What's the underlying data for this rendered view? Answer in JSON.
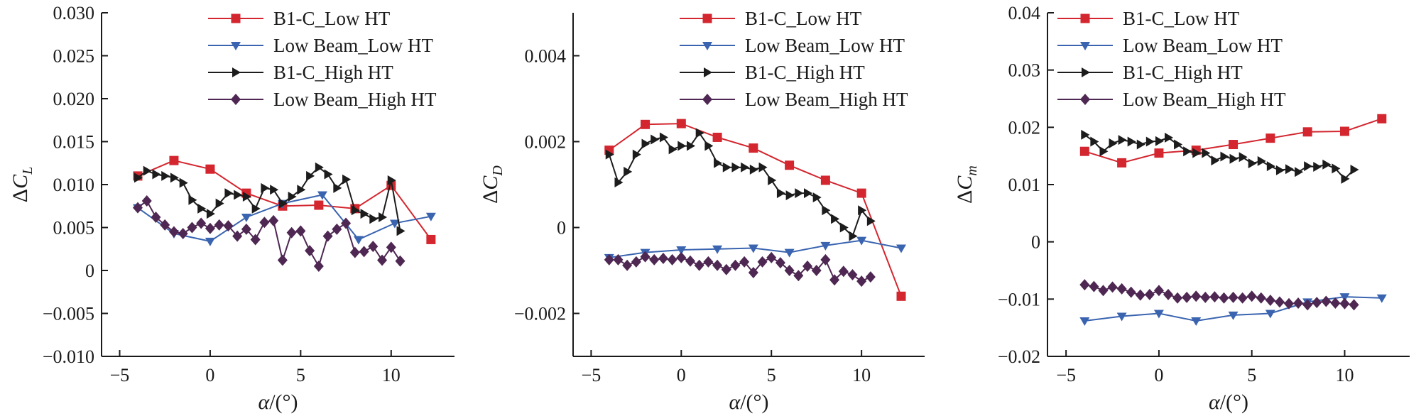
{
  "colors": {
    "s1": "#d3262f",
    "s2": "#3a64b0",
    "s3": "#1c1c1c",
    "s4": "#4e2752"
  },
  "legend_labels": [
    "B1-C_Low HT",
    "Low Beam_Low HT",
    "B1-C_High HT",
    "Low Beam_High HT"
  ],
  "chart_data": [
    {
      "type": "line",
      "xlabel": "α/(°)",
      "ylabel": "ΔC_L",
      "ylabel_main": "ΔC",
      "ylabel_sub": "L",
      "xlim": [
        -6,
        13.5
      ],
      "ylim": [
        -0.01,
        0.03
      ],
      "xticks": [
        -5,
        0,
        5,
        10
      ],
      "xtick_labels": [
        "−5",
        "0",
        "5",
        "10"
      ],
      "yticks": [
        -0.01,
        -0.005,
        0,
        0.005,
        0.01,
        0.015,
        0.02,
        0.025,
        0.03
      ],
      "ytick_labels": [
        "−0.010",
        "−0.005",
        "0",
        "0.005",
        "0.010",
        "0.015",
        "0.020",
        "0.025",
        "0.030"
      ],
      "legend_position": "top-right",
      "series": [
        {
          "name": "B1-C_Low HT",
          "marker": "square",
          "x": [
            -4,
            -2,
            0,
            2,
            4,
            6,
            8,
            10,
            12.2
          ],
          "y": [
            0.011,
            0.0128,
            0.0118,
            0.009,
            0.0075,
            0.0076,
            0.0072,
            0.0099,
            0.0036
          ]
        },
        {
          "name": "Low Beam_Low HT",
          "marker": "triangle-down",
          "x": [
            -4,
            -2,
            0,
            2,
            4,
            6.2,
            8.2,
            10.2,
            12.2
          ],
          "y": [
            0.0073,
            0.0043,
            0.0034,
            0.0062,
            0.0078,
            0.0088,
            0.0036,
            0.0055,
            0.0063
          ]
        },
        {
          "name": "B1-C_High HT",
          "marker": "triangle-right",
          "x": [
            -4,
            -3.5,
            -3,
            -2.5,
            -2,
            -1.5,
            -1,
            -0.5,
            0,
            0.5,
            1,
            1.5,
            2,
            2.5,
            3,
            3.5,
            4,
            4.5,
            5,
            5.5,
            6,
            6.5,
            7,
            7.5,
            8,
            8.5,
            9,
            9.5,
            10,
            10.5
          ],
          "y": [
            0.0108,
            0.0116,
            0.0112,
            0.011,
            0.0108,
            0.0102,
            0.0082,
            0.0072,
            0.0066,
            0.0078,
            0.009,
            0.0088,
            0.0086,
            0.0072,
            0.0096,
            0.0094,
            0.0078,
            0.0086,
            0.0094,
            0.011,
            0.012,
            0.0112,
            0.0096,
            0.0106,
            0.007,
            0.0066,
            0.006,
            0.0062,
            0.0105,
            0.0046
          ]
        },
        {
          "name": "Low Beam_High HT",
          "marker": "diamond",
          "x": [
            -4,
            -3.5,
            -3,
            -2.5,
            -2,
            -1.5,
            -1,
            -0.5,
            0,
            0.5,
            1,
            1.5,
            2,
            2.5,
            3,
            3.5,
            4,
            4.5,
            5,
            5.5,
            6,
            6.5,
            7,
            7.5,
            8,
            8.5,
            9,
            9.5,
            10,
            10.5
          ],
          "y": [
            0.0073,
            0.0081,
            0.0062,
            0.0053,
            0.0045,
            0.0043,
            0.005,
            0.0055,
            0.0049,
            0.0053,
            0.0052,
            0.004,
            0.0048,
            0.0036,
            0.0056,
            0.0058,
            0.0012,
            0.0044,
            0.0046,
            0.0023,
            0.0005,
            0.004,
            0.0048,
            0.0055,
            0.0021,
            0.0022,
            0.0028,
            0.0012,
            0.0027,
            0.0011
          ]
        }
      ]
    },
    {
      "type": "line",
      "xlabel": "α/(°)",
      "ylabel": "ΔC_D",
      "ylabel_main": "ΔC",
      "ylabel_sub": "D",
      "xlim": [
        -6,
        13.5
      ],
      "ylim": [
        -0.003,
        0.005
      ],
      "xticks": [
        -5,
        0,
        5,
        10
      ],
      "xtick_labels": [
        "−5",
        "0",
        "5",
        "10"
      ],
      "yticks": [
        -0.002,
        0,
        0.002,
        0.004
      ],
      "ytick_labels": [
        "−0.002",
        "0",
        "0.002",
        "0.004"
      ],
      "legend_position": "top-right",
      "series": [
        {
          "name": "B1-C_Low HT",
          "marker": "square",
          "x": [
            -4,
            -2,
            0,
            2,
            4,
            6,
            8,
            10,
            12.2
          ],
          "y": [
            0.0018,
            0.0024,
            0.00242,
            0.0021,
            0.00185,
            0.00145,
            0.0011,
            0.0008,
            -0.0016
          ]
        },
        {
          "name": "Low Beam_Low HT",
          "marker": "triangle-down",
          "x": [
            -4,
            -2,
            0,
            2,
            4,
            6,
            8,
            10,
            12.2
          ],
          "y": [
            -0.0007,
            -0.00058,
            -0.00052,
            -0.0005,
            -0.00048,
            -0.00058,
            -0.00042,
            -0.0003,
            -0.00048
          ]
        },
        {
          "name": "B1-C_High HT",
          "marker": "triangle-right",
          "x": [
            -4,
            -3.5,
            -3,
            -2.5,
            -2,
            -1.5,
            -1,
            -0.5,
            0,
            0.5,
            1,
            1.5,
            2,
            2.5,
            3,
            3.5,
            4,
            4.5,
            5,
            5.5,
            6,
            6.5,
            7,
            7.5,
            8,
            8.5,
            9,
            9.5,
            10,
            10.5
          ],
          "y": [
            0.0017,
            0.00105,
            0.0013,
            0.0017,
            0.00195,
            0.00205,
            0.0021,
            0.00182,
            0.0019,
            0.0019,
            0.0022,
            0.0019,
            0.0015,
            0.0014,
            0.0014,
            0.0014,
            0.00135,
            0.0014,
            0.0011,
            0.0008,
            0.00075,
            0.0008,
            0.0008,
            0.0007,
            0.0004,
            0.0002,
            0.0,
            -0.0002,
            0.0004,
            0.00015
          ]
        },
        {
          "name": "Low Beam_High HT",
          "marker": "diamond",
          "x": [
            -4,
            -3.5,
            -3,
            -2.5,
            -2,
            -1.5,
            -1,
            -0.5,
            0,
            0.5,
            1,
            1.5,
            2,
            2.5,
            3,
            3.5,
            4,
            4.5,
            5,
            5.5,
            6,
            6.5,
            7,
            7.5,
            8,
            8.5,
            9,
            9.5,
            10,
            10.5
          ],
          "y": [
            -0.00075,
            -0.00075,
            -0.00088,
            -0.0008,
            -0.00068,
            -0.00075,
            -0.00072,
            -0.00075,
            -0.0007,
            -0.00078,
            -0.00088,
            -0.0008,
            -0.00088,
            -0.00098,
            -0.00088,
            -0.0008,
            -0.00105,
            -0.0008,
            -0.0007,
            -0.00082,
            -0.001,
            -0.00112,
            -0.0009,
            -0.001,
            -0.00075,
            -0.00122,
            -0.00102,
            -0.0011,
            -0.00125,
            -0.00115
          ]
        }
      ]
    },
    {
      "type": "line",
      "xlabel": "α/(°)",
      "ylabel": "ΔC_m",
      "ylabel_main": "ΔC",
      "ylabel_sub": "m",
      "xlim": [
        -6,
        13.5
      ],
      "ylim": [
        -0.02,
        0.04
      ],
      "xticks": [
        -5,
        0,
        5,
        10
      ],
      "xtick_labels": [
        "−5",
        "0",
        "5",
        "10"
      ],
      "yticks": [
        -0.02,
        -0.01,
        0,
        0.01,
        0.02,
        0.03,
        0.04
      ],
      "ytick_labels": [
        "−0.02",
        "−0.01",
        "0",
        "0.01",
        "0.02",
        "0.03",
        "0.04"
      ],
      "legend_position": "top-right",
      "series": [
        {
          "name": "B1-C_Low HT",
          "marker": "square",
          "x": [
            -4,
            -2,
            0,
            2,
            4,
            6,
            8,
            10,
            12
          ],
          "y": [
            0.0158,
            0.0138,
            0.0155,
            0.016,
            0.017,
            0.0181,
            0.0192,
            0.0193,
            0.0215
          ]
        },
        {
          "name": "Low Beam_Low HT",
          "marker": "triangle-down",
          "x": [
            -4,
            -2,
            0,
            2,
            4,
            6,
            8,
            10,
            12
          ],
          "y": [
            -0.0138,
            -0.013,
            -0.0125,
            -0.0138,
            -0.0128,
            -0.0125,
            -0.0105,
            -0.0096,
            -0.0098
          ]
        },
        {
          "name": "B1-C_High HT",
          "marker": "triangle-right",
          "x": [
            -4,
            -3.5,
            -3,
            -2.5,
            -2,
            -1.5,
            -1,
            -0.5,
            0,
            0.5,
            1,
            1.5,
            2,
            2.5,
            3,
            3.5,
            4,
            4.5,
            5,
            5.5,
            6,
            6.5,
            7,
            7.5,
            8,
            8.5,
            9,
            9.5,
            10,
            10.5
          ],
          "y": [
            0.0187,
            0.0175,
            0.0158,
            0.0172,
            0.0178,
            0.0175,
            0.017,
            0.0175,
            0.0176,
            0.0182,
            0.017,
            0.0158,
            0.0155,
            0.0155,
            0.0142,
            0.0149,
            0.0145,
            0.0148,
            0.0137,
            0.0141,
            0.0132,
            0.0125,
            0.0127,
            0.0122,
            0.0132,
            0.0131,
            0.0135,
            0.0128,
            0.011,
            0.0126
          ]
        },
        {
          "name": "Low Beam_High HT",
          "marker": "diamond",
          "x": [
            -4,
            -3.5,
            -3,
            -2.5,
            -2,
            -1.5,
            -1,
            -0.5,
            0,
            0.5,
            1,
            1.5,
            2,
            2.5,
            3,
            3.5,
            4,
            4.5,
            5,
            5.5,
            6,
            6.5,
            7,
            7.5,
            8,
            8.5,
            9,
            9.5,
            10,
            10.5
          ],
          "y": [
            -0.0075,
            -0.0078,
            -0.0085,
            -0.0079,
            -0.0082,
            -0.0088,
            -0.0093,
            -0.0092,
            -0.0085,
            -0.0092,
            -0.0098,
            -0.0097,
            -0.0095,
            -0.0097,
            -0.0096,
            -0.0098,
            -0.0097,
            -0.0098,
            -0.0095,
            -0.0098,
            -0.0102,
            -0.0105,
            -0.0108,
            -0.0107,
            -0.011,
            -0.0106,
            -0.0104,
            -0.0107,
            -0.0108,
            -0.011
          ]
        }
      ]
    }
  ]
}
